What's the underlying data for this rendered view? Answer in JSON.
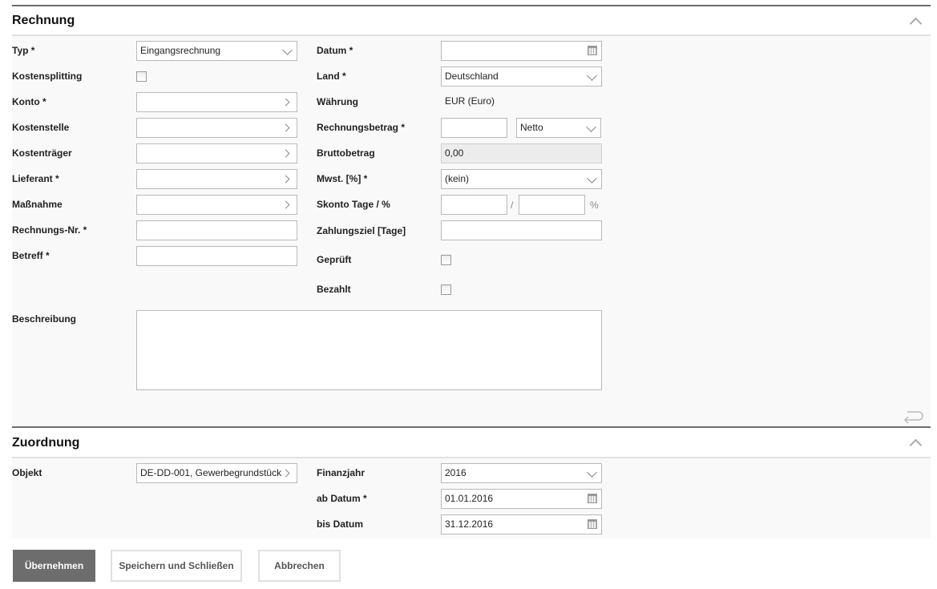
{
  "rechnung": {
    "title": "Rechnung",
    "typ": {
      "label": "Typ *",
      "value": "Eingangsrechnung"
    },
    "kostensplitting": {
      "label": "Kostensplitting",
      "checked": false
    },
    "konto": {
      "label": "Konto *",
      "value": ""
    },
    "kostenstelle": {
      "label": "Kostenstelle",
      "value": ""
    },
    "kostentraeger": {
      "label": "Kostenträger",
      "value": ""
    },
    "lieferant": {
      "label": "Lieferant *",
      "value": ""
    },
    "massnahme": {
      "label": "Maßnahme",
      "value": ""
    },
    "rechnungsnr": {
      "label": "Rechnungs-Nr. *",
      "value": ""
    },
    "betreff": {
      "label": "Betreff *",
      "value": ""
    },
    "datum": {
      "label": "Datum *",
      "value": ""
    },
    "land": {
      "label": "Land *",
      "value": "Deutschland"
    },
    "waehrung": {
      "label": "Währung",
      "value": "EUR (Euro)"
    },
    "rechnungsbetrag": {
      "label": "Rechnungsbetrag *",
      "value": "",
      "mode": "Netto"
    },
    "bruttobetrag": {
      "label": "Bruttobetrag",
      "value": "0,00"
    },
    "mwst": {
      "label": "Mwst. [%] *",
      "value": "(kein)"
    },
    "skonto": {
      "label": "Skonto Tage / %",
      "tage": "",
      "separator": "/",
      "prozent": "",
      "unit": "%"
    },
    "zahlungsziel": {
      "label": "Zahlungsziel [Tage]",
      "value": ""
    },
    "geprueft": {
      "label": "Geprüft",
      "checked": false
    },
    "bezahlt": {
      "label": "Bezahlt",
      "checked": false
    },
    "beschreibung": {
      "label": "Beschreibung",
      "value": ""
    }
  },
  "zuordnung": {
    "title": "Zuordnung",
    "objekt": {
      "label": "Objekt",
      "value": "DE-DD-001, Gewerbegrundstück"
    },
    "finanzjahr": {
      "label": "Finanzjahr",
      "value": "2016"
    },
    "ab_datum": {
      "label": "ab Datum *",
      "value": "01.01.2016"
    },
    "bis_datum": {
      "label": "bis Datum",
      "value": "31.12.2016"
    }
  },
  "buttons": {
    "apply": "Übernehmen",
    "save_close": "Speichern und Schließen",
    "cancel": "Abbrechen"
  }
}
